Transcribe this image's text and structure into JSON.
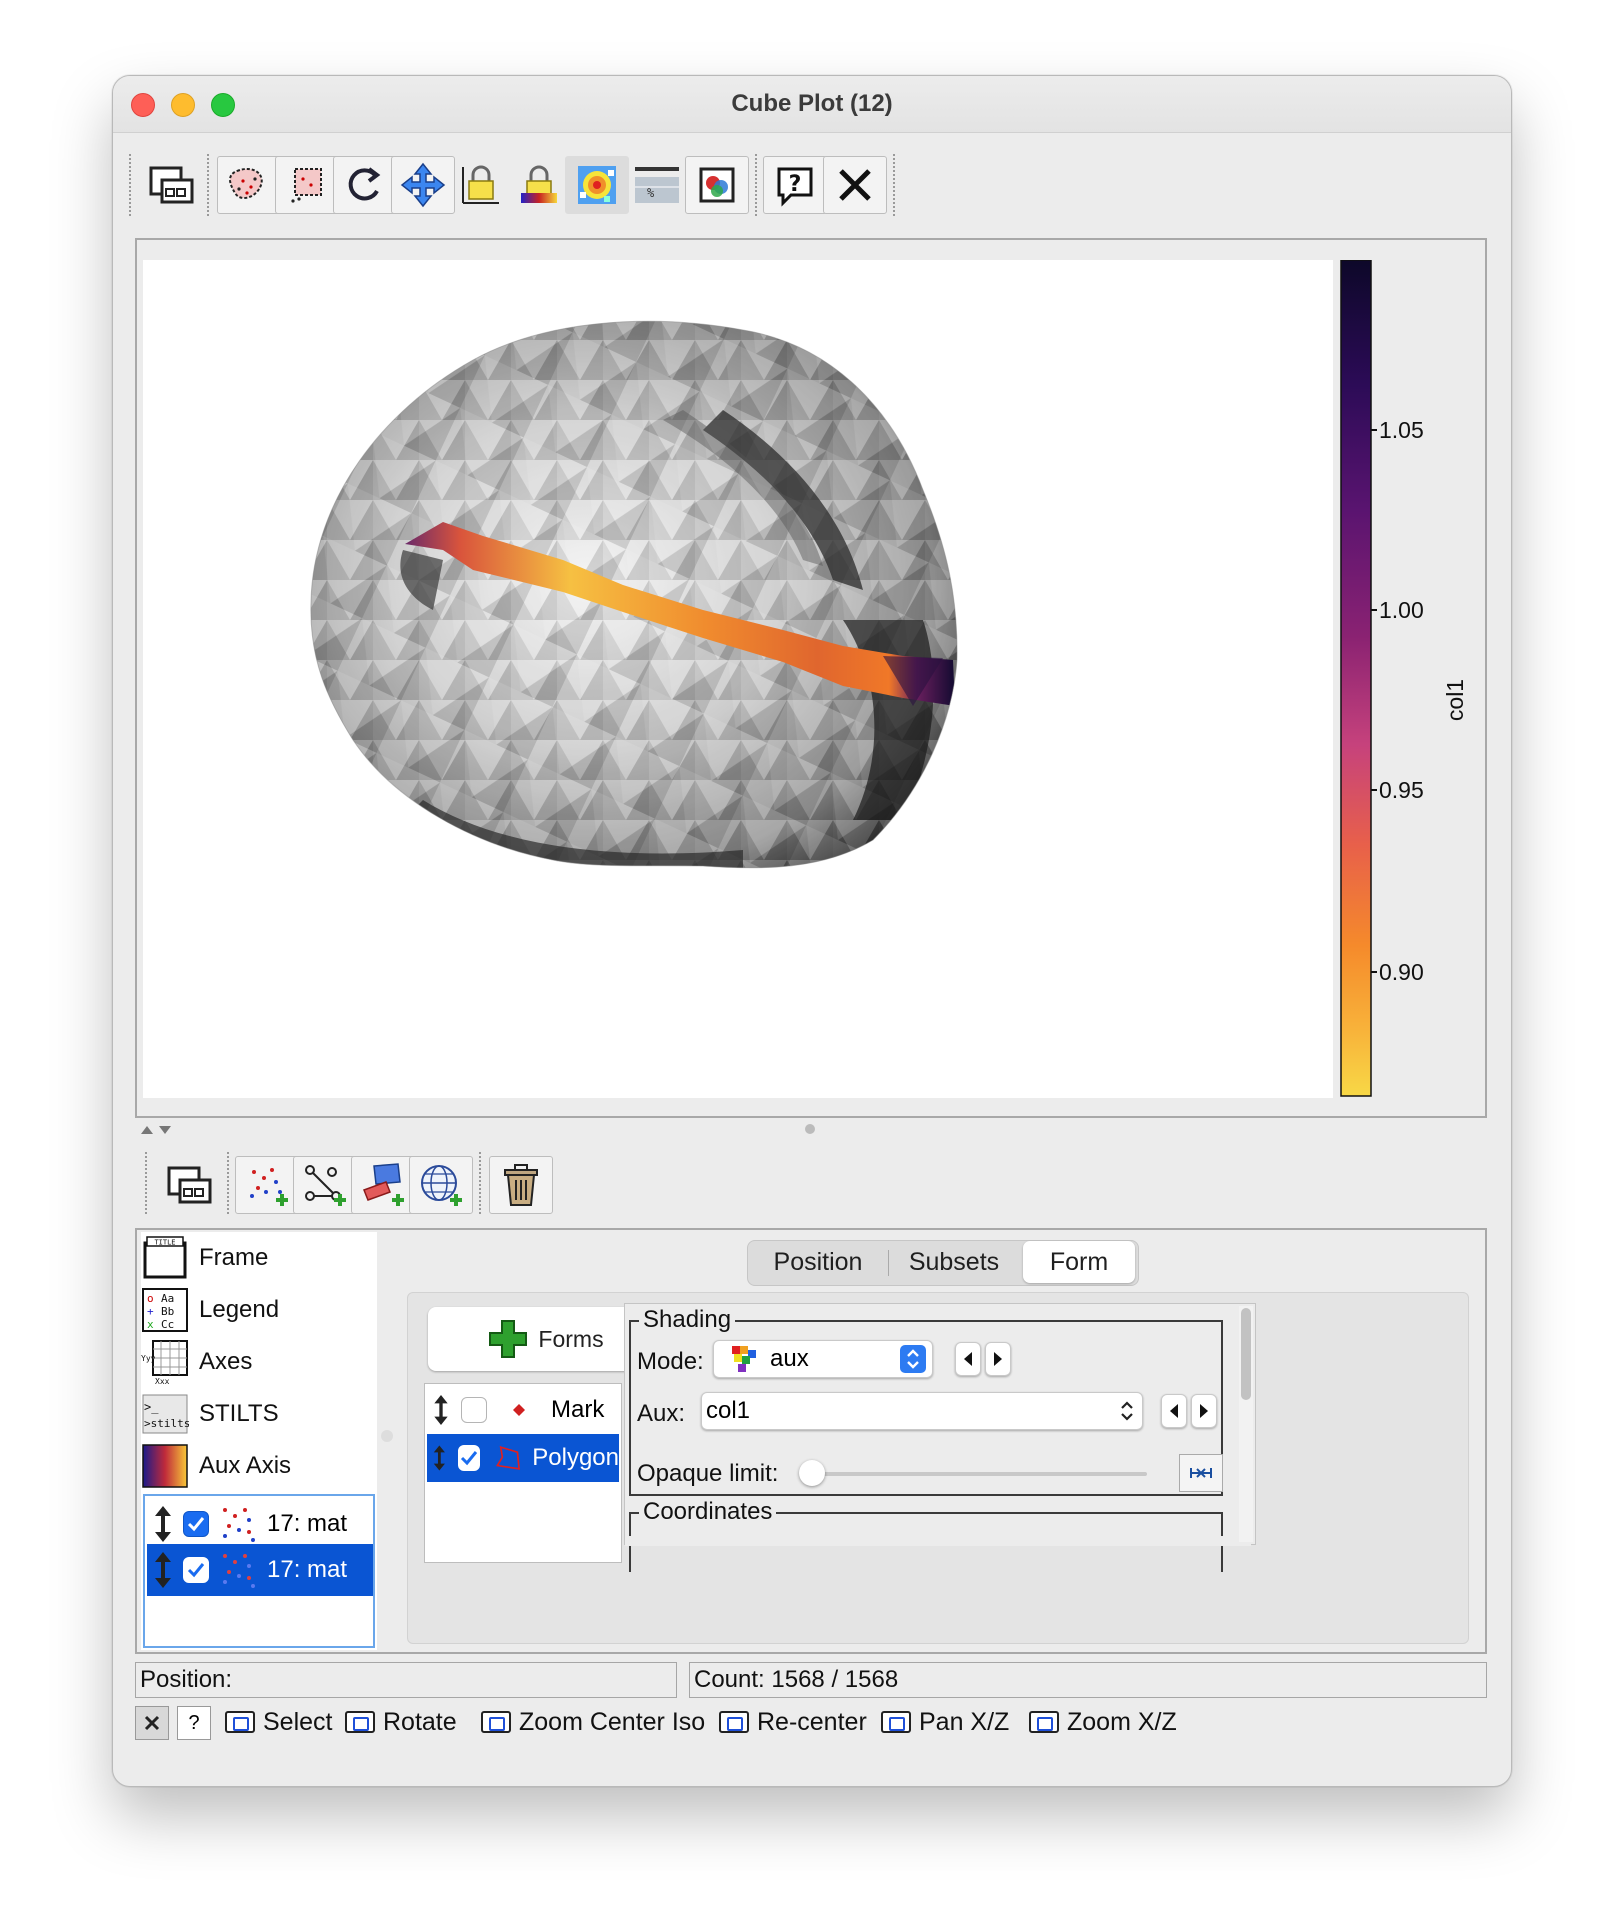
{
  "window": {
    "title": "Cube Plot (12)"
  },
  "toolbar": {
    "buttons": [
      "window-icon",
      "blob-subset-icon",
      "box-subset-icon",
      "replot-icon",
      "navigation-icon",
      "lock-axes-icon",
      "lock-aux-icon",
      "shader-icon",
      "export-icon",
      "image-export-icon",
      "help-icon",
      "close-icon"
    ]
  },
  "plot": {
    "colorbar": {
      "label": "col1",
      "ticks": [
        "1.05",
        "1.00",
        "0.95",
        "0.90"
      ],
      "colors": {
        "high": "#0d0829",
        "mid": "#c6427c",
        "low": "#f8d846"
      }
    }
  },
  "chart_data": {
    "type": "other",
    "colorbar_label": "col1",
    "colorbar_ticks": [
      1.05,
      1.0,
      0.95,
      0.9
    ],
    "colormap": "inferno-reversed"
  },
  "layer_toolbar": {
    "buttons": [
      "float-icon",
      "add-position-layer-icon",
      "add-pair-layer-icon",
      "add-area-layer-icon",
      "add-sky-layer-icon",
      "delete-layer-icon"
    ]
  },
  "control_list": {
    "items": [
      {
        "label": "Frame",
        "icon": "frame-icon"
      },
      {
        "label": "Legend",
        "icon": "legend-icon"
      },
      {
        "label": "Axes",
        "icon": "axes-icon"
      },
      {
        "label": "STILTS",
        "icon": "stilts-icon"
      },
      {
        "label": "Aux Axis",
        "icon": "aux-axis-icon"
      }
    ],
    "layers": [
      {
        "label": "17: mat",
        "checked": true,
        "selected": false
      },
      {
        "label": "17: mat",
        "checked": true,
        "selected": true
      }
    ]
  },
  "tabs": [
    "Position",
    "Subsets",
    "Form"
  ],
  "active_tab": "Form",
  "forms": {
    "button_label": "Forms",
    "items": [
      {
        "label": "Mark",
        "checked": false,
        "selected": false
      },
      {
        "label": "Polygon",
        "checked": true,
        "selected": true
      }
    ]
  },
  "shading": {
    "legend": "Shading",
    "mode_label": "Mode:",
    "mode_value": "aux",
    "aux_label": "Aux:",
    "aux_value": "col1",
    "opaque_label": "Opaque limit:",
    "opaque_value": 0
  },
  "coordinates": {
    "legend": "Coordinates"
  },
  "status": {
    "position_label": "Position:",
    "count_text": "Count: 1568 / 1568"
  },
  "modes": [
    "Select",
    "Rotate",
    "Zoom Center Iso",
    "Re-center",
    "Pan X/Z",
    "Zoom X/Z"
  ]
}
